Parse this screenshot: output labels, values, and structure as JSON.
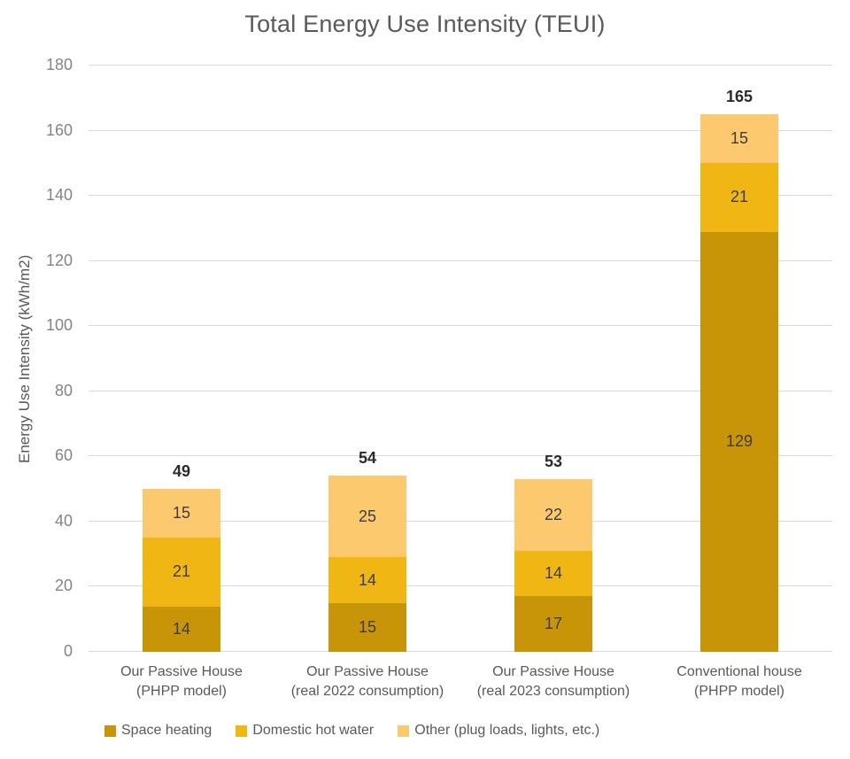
{
  "chart_data": {
    "type": "bar",
    "stacked": true,
    "title": "Total Energy Use Intensity (TEUI)",
    "xlabel": "",
    "ylabel": "Energy Use Intensity (kWh/m2)",
    "ylim": [
      0,
      180
    ],
    "yticks": [
      0,
      20,
      40,
      60,
      80,
      100,
      120,
      140,
      160,
      180
    ],
    "grid": "horizontal",
    "legend_position": "bottom",
    "categories": [
      "Our Passive House\n(PHPP model)",
      "Our Passive House\n(real 2022 consumption)",
      "Our Passive House\n(real 2023 consumption)",
      "Conventional house\n(PHPP model)"
    ],
    "series": [
      {
        "name": "Space heating",
        "color": "#C89408",
        "values": [
          14,
          15,
          17,
          129
        ]
      },
      {
        "name": "Domestic hot water",
        "color": "#F0B714",
        "values": [
          21,
          14,
          14,
          21
        ]
      },
      {
        "name": "Other (plug loads, lights, etc.)",
        "color": "#FDC96E",
        "values": [
          15,
          25,
          22,
          15
        ]
      }
    ],
    "totals": [
      49,
      54,
      53,
      165
    ]
  },
  "colors": {
    "space_heating": "#C89408",
    "domestic_hot_water": "#F0B714",
    "other": "#FDC96E",
    "gridline": "#d9d9d9",
    "title_text": "#595959",
    "tick_text": "#848484"
  }
}
